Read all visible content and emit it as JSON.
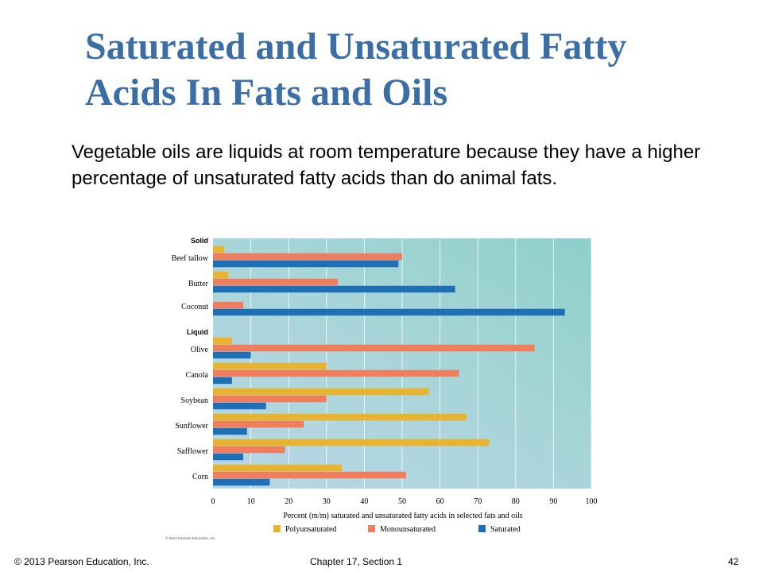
{
  "slide": {
    "title_line1": "Saturated and Unsaturated Fatty",
    "title_line2": "Acids In Fats and Oils",
    "body": "Vegetable oils are liquids at room temperature because they have a higher percentage of unsaturated fatty acids than do animal fats."
  },
  "footer": {
    "copyright": "© 2013 Pearson Education, Inc.",
    "chapter": "Chapter 17, Section 1",
    "page_number": "42"
  },
  "chart_data": {
    "type": "bar",
    "orientation": "horizontal",
    "groups": [
      {
        "label": "Solid",
        "categories": [
          "Beef tallow",
          "Butter",
          "Coconut"
        ]
      },
      {
        "label": "Liquid",
        "categories": [
          "Olive",
          "Canola",
          "Soybean",
          "Sunflower",
          "Safflower",
          "Corn"
        ]
      }
    ],
    "categories": [
      "Beef tallow",
      "Butter",
      "Coconut",
      "Olive",
      "Canola",
      "Soybean",
      "Sunflower",
      "Safflower",
      "Corn"
    ],
    "series": [
      {
        "name": "Polyunsaturated",
        "color": "#e8b32e",
        "values": [
          3,
          4,
          0,
          5,
          30,
          57,
          67,
          73,
          34
        ]
      },
      {
        "name": "Monounsaturated",
        "color": "#ef7d5e",
        "values": [
          50,
          33,
          8,
          85,
          65,
          30,
          24,
          19,
          51
        ]
      },
      {
        "name": "Saturated",
        "color": "#1f6fb8",
        "values": [
          49,
          64,
          93,
          10,
          5,
          14,
          9,
          8,
          15
        ]
      }
    ],
    "xlabel": "Percent (m/m) saturated and unsaturated fatty acids in selected fats and oils",
    "xlim": [
      0,
      100
    ],
    "xticks": [
      "0",
      "10",
      "20",
      "30",
      "40",
      "50",
      "60",
      "70",
      "80",
      "90",
      "100"
    ],
    "grid": true,
    "legend_position": "bottom",
    "copyright": "© 2013 Pearson Education, Inc."
  }
}
